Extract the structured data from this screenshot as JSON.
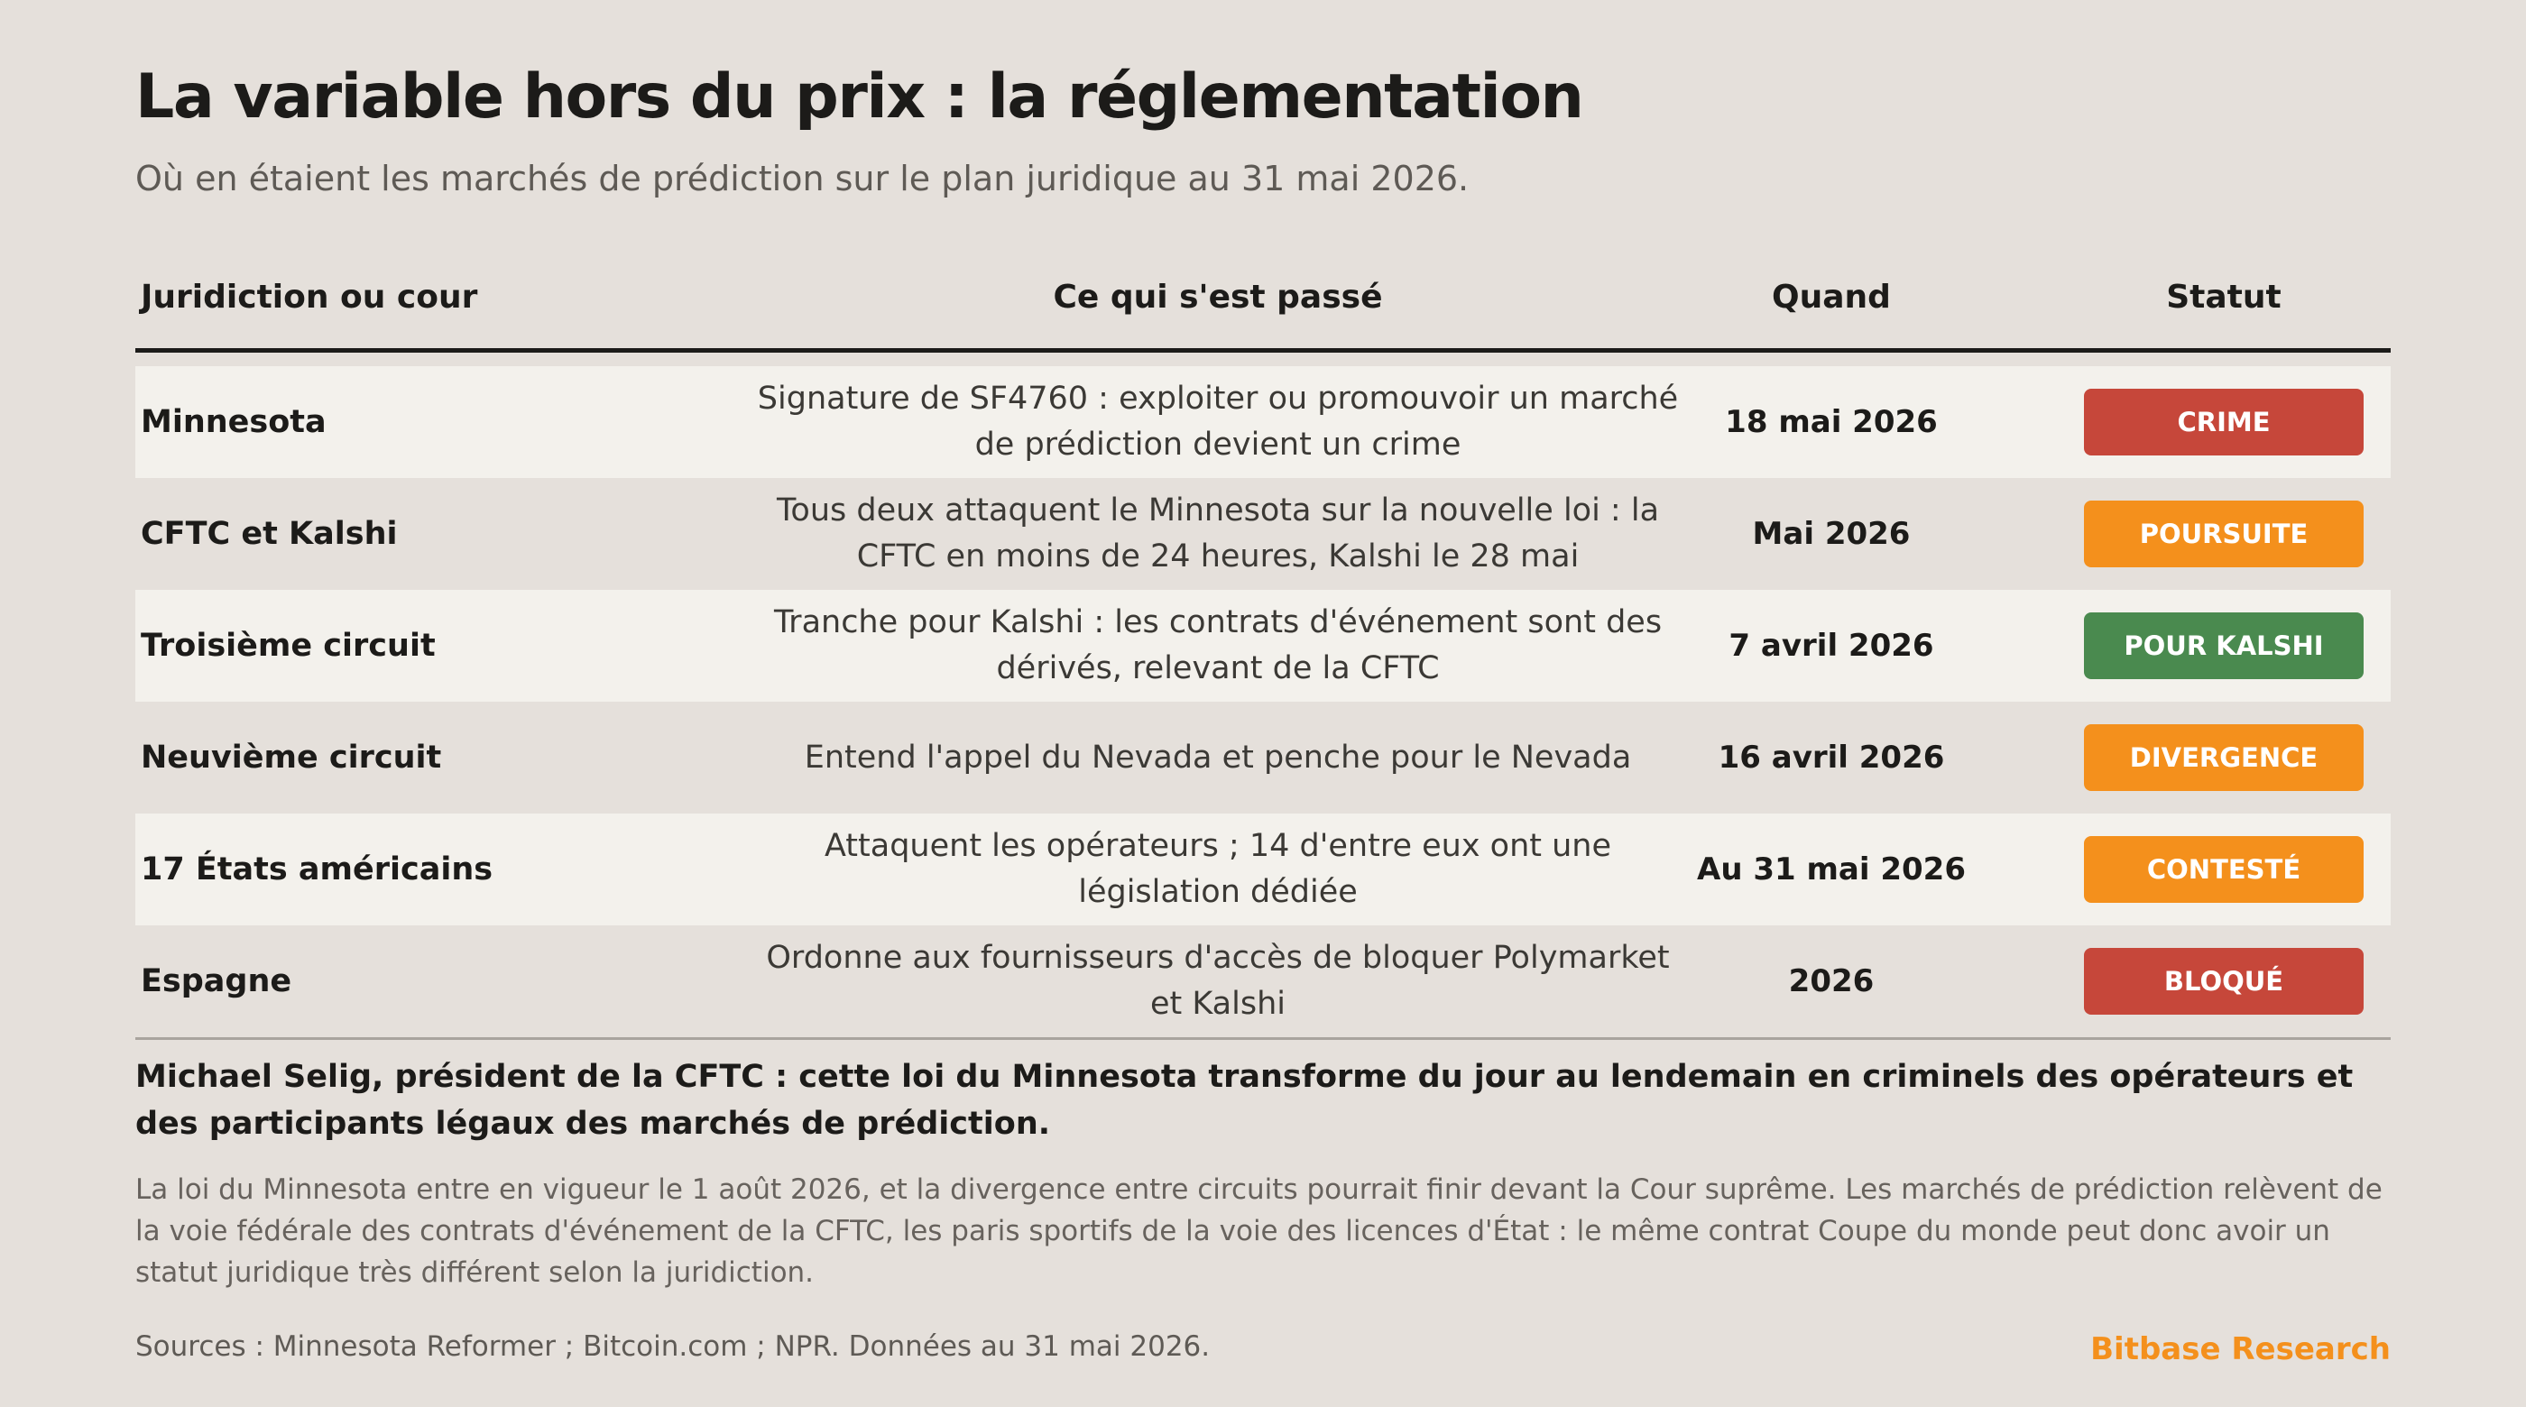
{
  "title": "La variable hors du prix : la réglementation",
  "subtitle": "Où en étaient les marchés de prédiction sur le plan juridique au 31 mai 2026.",
  "table": {
    "headers": [
      "Juridiction ou cour",
      "Ce qui s'est passé",
      "Quand",
      "Statut"
    ],
    "rows": [
      {
        "jurisdiction": "Minnesota",
        "event": "Signature de SF4760 : exploiter ou promouvoir un marché de prédiction devient un crime",
        "when": "18 mai 2026",
        "status": "CRIME",
        "status_color": "#c6473a"
      },
      {
        "jurisdiction": "CFTC et Kalshi",
        "event": "Tous deux attaquent le Minnesota sur la nouvelle loi : la CFTC en moins de 24 heures, Kalshi le 28 mai",
        "when": "Mai 2026",
        "status": "POURSUITE",
        "status_color": "#f4901c"
      },
      {
        "jurisdiction": "Troisième circuit",
        "event": "Tranche pour Kalshi : les contrats d'événement sont des dérivés, relevant de la CFTC",
        "when": "7 avril 2026",
        "status": "POUR KALSHI",
        "status_color": "#4a8a4f"
      },
      {
        "jurisdiction": "Neuvième circuit",
        "event": "Entend l'appel du Nevada et penche pour le Nevada",
        "when": "16 avril 2026",
        "status": "DIVERGENCE",
        "status_color": "#f4901c"
      },
      {
        "jurisdiction": "17 États américains",
        "event": "Attaquent les opérateurs ; 14 d'entre eux ont une législation dédiée",
        "when": "Au 31 mai 2026",
        "status": "CONTESTÉ",
        "status_color": "#f4901c"
      },
      {
        "jurisdiction": "Espagne",
        "event": "Ordonne aux fournisseurs d'accès de bloquer Polymarket et Kalshi",
        "when": "2026",
        "status": "BLOQUÉ",
        "status_color": "#c6473a"
      }
    ]
  },
  "quote": "Michael Selig, président de la CFTC : cette loi du Minnesota transforme du jour au lendemain en criminels des opérateurs et des participants légaux des marchés de prédiction.",
  "note": "La loi du Minnesota entre en vigueur le 1 août 2026, et la divergence entre circuits pourrait finir devant la Cour suprême. Les marchés de prédiction relèvent de la voie fédérale des contrats d'événement de la CFTC, les paris sportifs de la voie des licences d'État : le même contrat Coupe du monde peut donc avoir un statut juridique très différent selon la juridiction.",
  "sources": "Sources : Minnesota Reformer ; Bitcoin.com ; NPR. Données au 31 mai 2026.",
  "brand": "Bitbase Research",
  "brand_color": "#f4901c"
}
